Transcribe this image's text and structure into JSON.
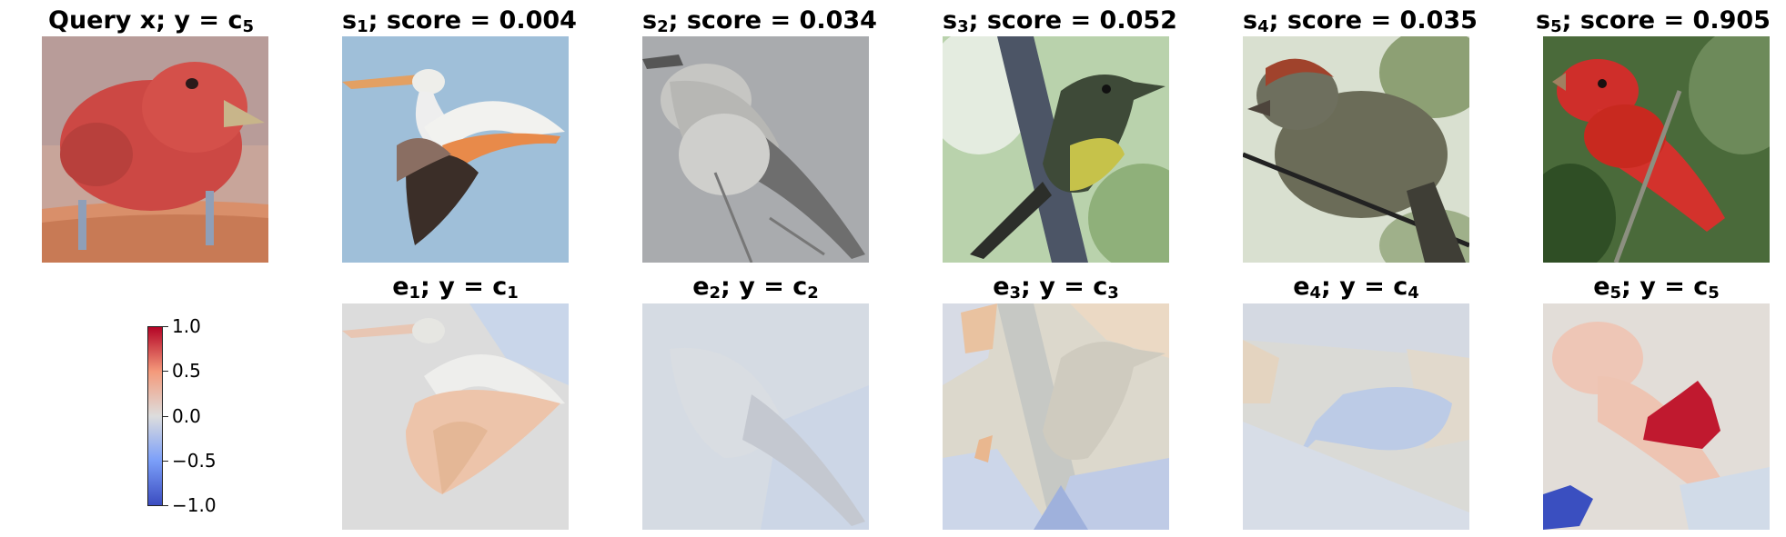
{
  "queries": [
    {
      "label_pre": "Query x; y = c",
      "label_sub": "5",
      "label_post": "",
      "image": "query-image"
    }
  ],
  "top_row": [
    {
      "pre": "s",
      "sub": "1",
      "post": "; score = 0.004",
      "image": "pelican-image"
    },
    {
      "pre": "s",
      "sub": "2",
      "post": "; score = 0.034",
      "image": "shrike-image"
    },
    {
      "pre": "s",
      "sub": "3",
      "post": "; score = 0.052",
      "image": "flycatcher-image"
    },
    {
      "pre": "s",
      "sub": "4",
      "post": "; score = 0.035",
      "image": "sparrow-image"
    },
    {
      "pre": "s",
      "sub": "5",
      "post": "; score = 0.905",
      "image": "tanager-image"
    }
  ],
  "bottom_row": [
    {
      "pre": "e",
      "sub": "1",
      "mid": "; y = c",
      "sub2": "1",
      "image": "pelican-explanation"
    },
    {
      "pre": "e",
      "sub": "2",
      "mid": "; y = c",
      "sub2": "2",
      "image": "shrike-explanation"
    },
    {
      "pre": "e",
      "sub": "3",
      "mid": "; y = c",
      "sub2": "3",
      "image": "flycatcher-explanation"
    },
    {
      "pre": "e",
      "sub": "4",
      "mid": "; y = c",
      "sub2": "4",
      "image": "sparrow-explanation"
    },
    {
      "pre": "e",
      "sub": "5",
      "mid": "; y = c",
      "sub2": "5",
      "image": "tanager-explanation"
    }
  ],
  "colorbar": {
    "ticks": [
      "1.0",
      "0.5",
      "0.0",
      "−0.5",
      "−1.0"
    ],
    "colors": {
      "high": "#b40426",
      "mid": "#dddddd",
      "low": "#3b4cc0"
    }
  }
}
